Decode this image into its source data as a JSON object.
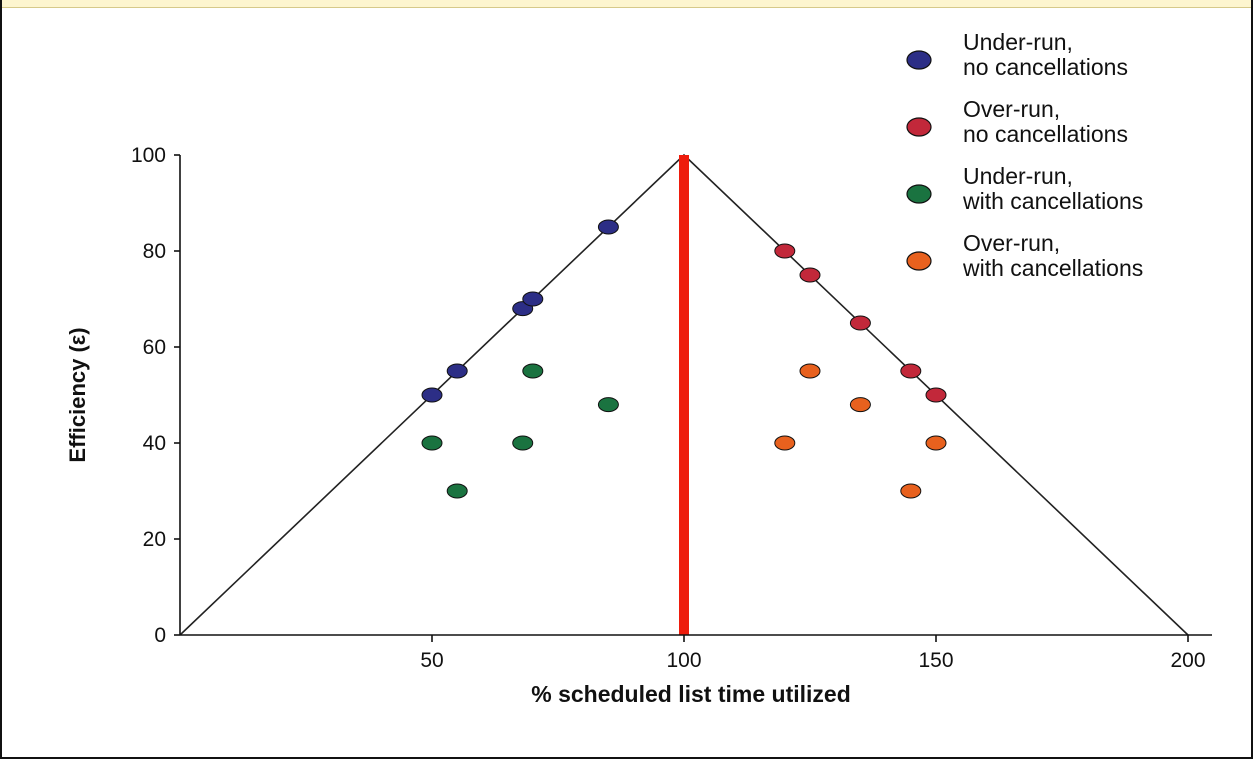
{
  "chart_data": {
    "type": "scatter",
    "xlabel": "% scheduled list time utilized",
    "ylabel": "Efficiency (ε)",
    "x_ticks": [
      {
        "value": 50,
        "label": "50"
      },
      {
        "value": 100,
        "label": "100"
      },
      {
        "value": 150,
        "label": "150"
      },
      {
        "value": 200,
        "label": "200"
      }
    ],
    "y_ticks": [
      {
        "value": 0,
        "label": "0"
      },
      {
        "value": 20,
        "label": "20"
      },
      {
        "value": 40,
        "label": "40"
      },
      {
        "value": 60,
        "label": "60"
      },
      {
        "value": 80,
        "label": "80"
      },
      {
        "value": 100,
        "label": "100"
      }
    ],
    "xlim": [
      0,
      200
    ],
    "ylim": [
      0,
      100
    ],
    "grid": false,
    "legend_position": "top-right",
    "reference_lines": [
      {
        "points": [
          [
            0,
            0
          ],
          [
            100,
            100
          ],
          [
            200,
            0
          ]
        ],
        "color": "#222222"
      }
    ],
    "vertical_marker": {
      "x": 100,
      "from": 0,
      "to": 100,
      "color": "#ee1c0c"
    },
    "series": [
      {
        "name": "Under-run, no cancellations",
        "color": "#2c2e86",
        "points": [
          [
            50,
            50
          ],
          [
            55,
            55
          ],
          [
            68,
            68
          ],
          [
            70,
            70
          ],
          [
            85,
            85
          ]
        ]
      },
      {
        "name": "Over-run, no cancellations",
        "color": "#c2283a",
        "points": [
          [
            120,
            80
          ],
          [
            125,
            75
          ],
          [
            135,
            65
          ],
          [
            145,
            55
          ],
          [
            150,
            50
          ]
        ]
      },
      {
        "name": "Under-run, with cancellations",
        "color": "#1a7340",
        "points": [
          [
            50,
            40
          ],
          [
            55,
            30
          ],
          [
            68,
            40
          ],
          [
            70,
            55
          ],
          [
            85,
            48
          ]
        ]
      },
      {
        "name": "Over-run, with cancellations",
        "color": "#e8611e",
        "points": [
          [
            120,
            40
          ],
          [
            125,
            55
          ],
          [
            135,
            48
          ],
          [
            145,
            30
          ],
          [
            150,
            40
          ]
        ]
      }
    ]
  }
}
